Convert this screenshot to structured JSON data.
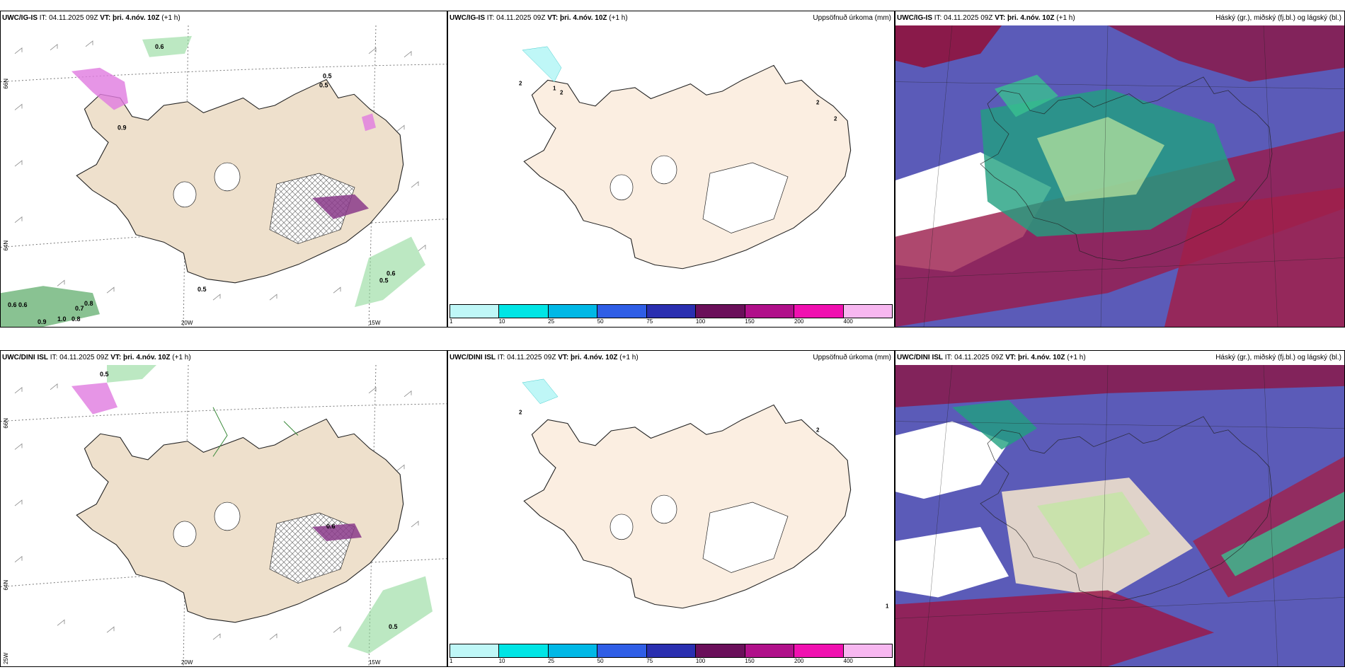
{
  "rows": [
    {
      "model": "UWC/IG-IS",
      "it_label": "IT:",
      "it_value": "04.11.2025 09Z",
      "vt_label": "VT:",
      "vt_value": "þri. 4.nóv. 10Z",
      "offset": "(+1 h)"
    },
    {
      "model": "UWC/DINI ISL",
      "it_label": "IT:",
      "it_value": "04.11.2025 09Z",
      "vt_label": "VT:",
      "vt_value": "þri. 4.nóv. 10Z",
      "offset": "(+1 h)"
    }
  ],
  "precip_title": "Uppsöfnuð úrkoma (mm)",
  "cloud_title": "Háský (gr.), miðský (fj.bl.) og lágský (bl.)",
  "colorbar": {
    "labels": [
      "1",
      "10",
      "25",
      "50",
      "75",
      "100",
      "150",
      "200",
      "400"
    ],
    "colors": [
      "#bff7f7",
      "#00e5e5",
      "#00b8e6",
      "#2f5ee6",
      "#2a2fb0",
      "#6a0f5a",
      "#b0108a",
      "#f010b0",
      "#f7b7f0"
    ]
  },
  "wind_axes": {
    "lon_labels": [
      "20W",
      "15W"
    ],
    "lat_labels": [
      "66N",
      "64N"
    ],
    "lon_left": "25W"
  },
  "precip_labels": {
    "row0": [
      "2",
      "1",
      "2",
      "2",
      "2"
    ],
    "row1": [
      "2",
      "2",
      "1"
    ]
  },
  "wind_values": {
    "row0": [
      "0.6",
      "0.5",
      "0.5",
      "0.9",
      "0.6",
      "0.5",
      "0.5",
      "0.6",
      "0.8",
      "0.7",
      "1.0",
      "0.8",
      "0.9",
      "0.6"
    ],
    "row1": [
      "0.5",
      "0.6",
      "0.5"
    ]
  }
}
